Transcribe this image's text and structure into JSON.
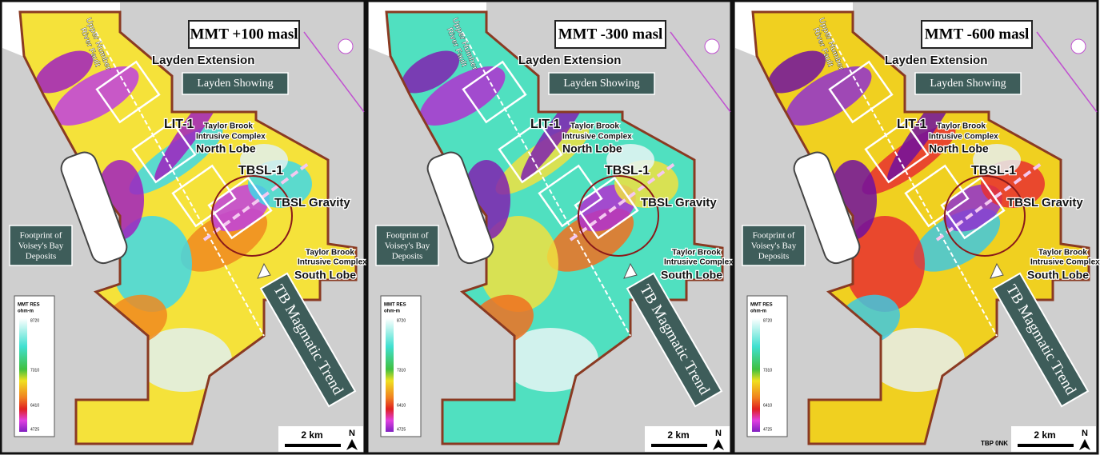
{
  "panels": [
    {
      "title": "MMT +100 masl"
    },
    {
      "title": "MMT -300 masl"
    },
    {
      "title": "MMT -600 masl",
      "note": "TBP 0NK"
    }
  ],
  "labels": {
    "fault": [
      "Upper Humber",
      "River Fault"
    ],
    "layden_extension": "Layden Extension",
    "layden_showing": "Layden Showing",
    "lit1": "LIT-1",
    "north_lobe": [
      "Taylor Brook",
      "Intrusive Complex",
      "North Lobe"
    ],
    "tbsl1": "TBSL-1",
    "tbsl_gravity": "TBSL Gravity",
    "footprint": [
      "Footprint of",
      "Voisey's Bay",
      "Deposits"
    ],
    "south_lobe": [
      "Taylor Brook",
      "Intrusive Complex",
      "South Lobe"
    ],
    "trend": "TB Magmatic Trend",
    "legend_title": [
      "MMT RES",
      "ohm-m"
    ],
    "legend_ticks": [
      "8720",
      "7310",
      "6410",
      "4725"
    ],
    "scale": "2 km",
    "north": "N"
  }
}
